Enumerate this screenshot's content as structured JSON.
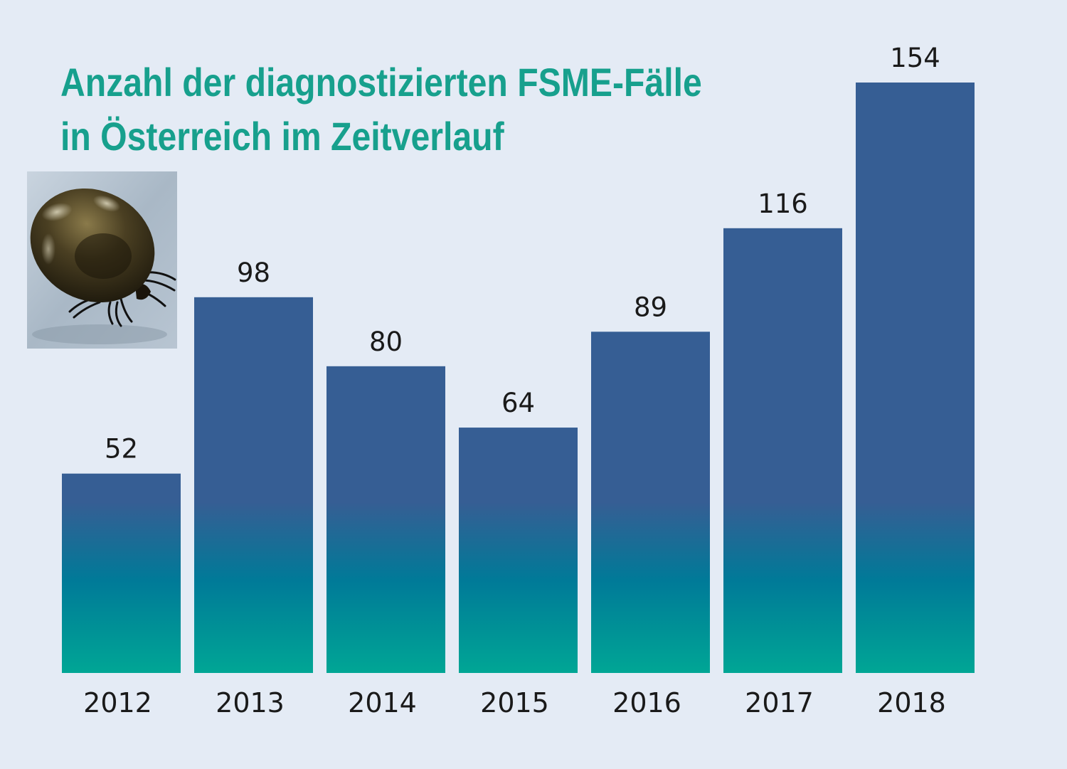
{
  "chart_data": {
    "type": "bar",
    "title_lines": [
      "Anzahl der diagnostizierten FSME-Fälle",
      "in Österreich im Zeitverlauf"
    ],
    "categories": [
      "2012",
      "2013",
      "2014",
      "2015",
      "2016",
      "2017",
      "2018"
    ],
    "values": [
      52,
      98,
      80,
      64,
      89,
      116,
      154
    ],
    "data_labels": [
      "52",
      "98",
      "80",
      "64",
      "89",
      "116",
      "154"
    ],
    "xlabel": "",
    "ylabel": "",
    "ylim": [
      0,
      154
    ],
    "grid": false,
    "legend": "none",
    "colors": {
      "background": "#e4ebf5",
      "title": "#17a08d",
      "bar_top": "#365e94",
      "bar_mid": "#007a98",
      "bar_bottom": "#00a695",
      "text": "#1a1a1a"
    }
  },
  "illustration": {
    "icon": "tick-icon"
  }
}
